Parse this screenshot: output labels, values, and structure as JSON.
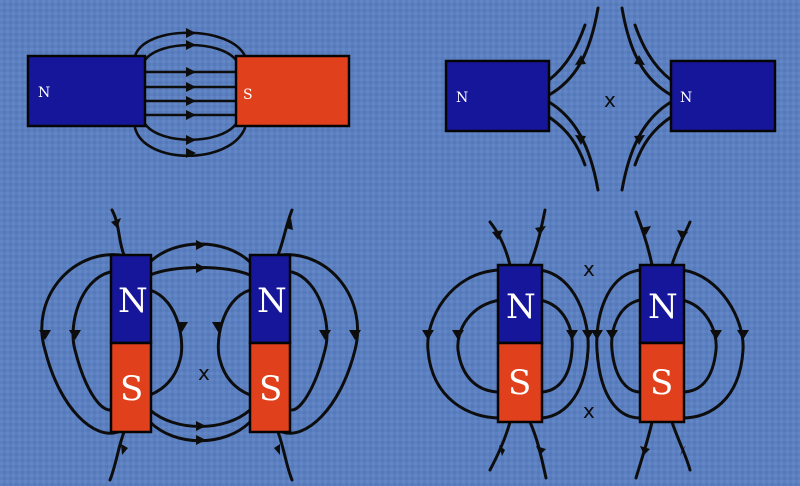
{
  "colors": {
    "background": "#5c7fbf",
    "north": "#16169a",
    "south": "#e0401c",
    "field_line": "#0d0d0d"
  },
  "panels": {
    "attract_horizontal": {
      "left_label": "N",
      "right_label": "S"
    },
    "repel_horizontal": {
      "left_label": "N",
      "right_label": "N",
      "neutral_mark": "x"
    },
    "parallel_same": {
      "left_top": "N",
      "left_bottom": "S",
      "right_top": "N",
      "right_bottom": "S",
      "neutral_mark": "x"
    },
    "parallel_second": {
      "left_top": "N",
      "left_bottom": "S",
      "right_top": "N",
      "right_bottom": "S",
      "neutral_top": "x",
      "neutral_bottom": "x"
    }
  }
}
